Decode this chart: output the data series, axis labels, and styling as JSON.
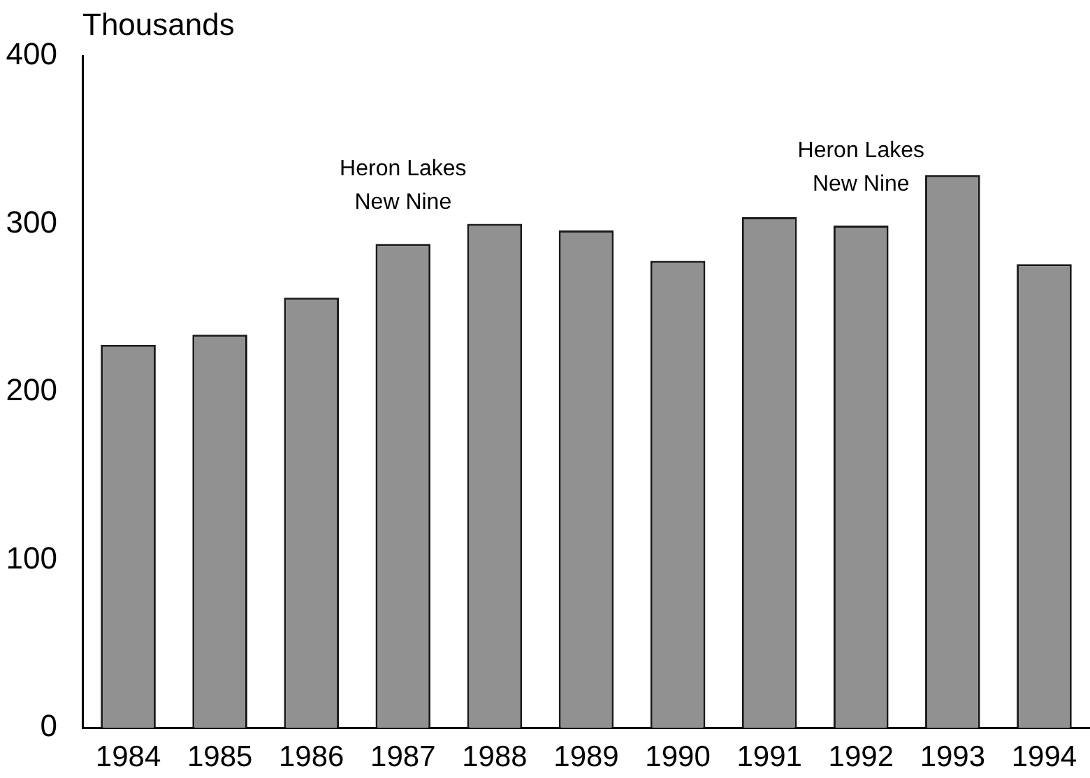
{
  "chart_data": {
    "type": "bar",
    "ylabel": "Thousands",
    "categories": [
      "1984",
      "1985",
      "1986",
      "1987",
      "1988",
      "1989",
      "1990",
      "1991",
      "1992",
      "1993",
      "1994"
    ],
    "values": [
      228,
      234,
      256,
      288,
      300,
      296,
      278,
      304,
      299,
      329,
      276
    ],
    "color": "#919191",
    "ylim": [
      0,
      400
    ],
    "yticks": [
      0,
      100,
      200,
      300,
      400
    ],
    "annotations": [
      {
        "text": "Heron Lakes\nNew Nine",
        "x": "1987",
        "y": 288
      },
      {
        "text": "Heron Lakes\nNew Nine",
        "x": "1992",
        "y": 299
      }
    ]
  }
}
